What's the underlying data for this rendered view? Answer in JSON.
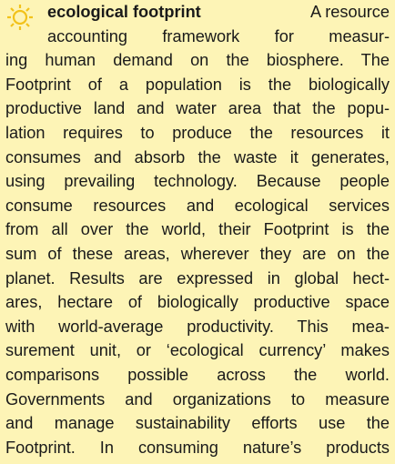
{
  "entry": {
    "term": "ecological footprint",
    "lines": [
      "A resource",
      "accounting framework for measur-",
      "ing human demand on the biosphere. The",
      "Footprint of a population is the biologically",
      "productive land and water area that the popu-",
      "lation requires to produce the resources it",
      "consumes and absorb the waste it generates,",
      "using prevailing technology. Because people",
      "consume resources and ecological services",
      "from all over the world, their Footprint is the",
      "sum of these areas, wherever they are on the",
      "planet. Results are expressed in global hect-",
      "ares, hectare of biologically productive space",
      "with world-average productivity. This mea-",
      "surement unit, or ‘ecological currency’ makes",
      "comparisons possible across the world.",
      "Governments and organizations to measure",
      "and manage sustainability efforts use the",
      "Footprint. In consuming nature’s products"
    ]
  }
}
